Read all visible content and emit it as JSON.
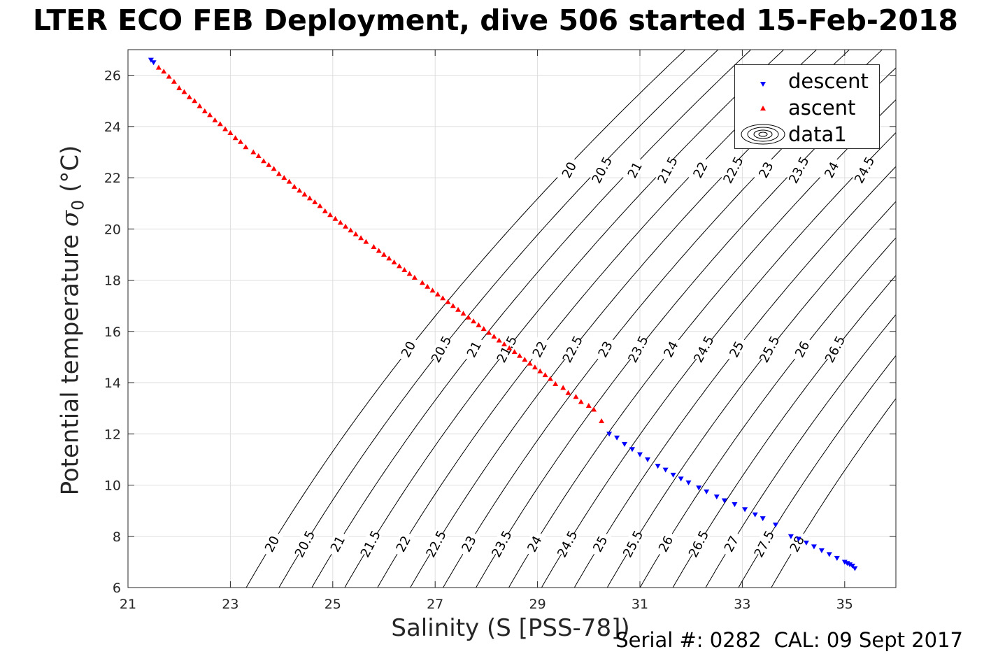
{
  "title": "LTER ECO FEB Deployment, dive 506 started 15-Feb-2018",
  "footer": {
    "serial": "Serial #: 0282",
    "cal": "CAL: 09 Sept 2017"
  },
  "colors": {
    "descent": "#0000ff",
    "ascent": "#ff0000",
    "contour": "#000000",
    "grid": "#dedede",
    "axis": "#262626"
  },
  "chart_data": {
    "type": "scatter",
    "title": "LTER ECO FEB Deployment, dive 506 started 15-Feb-2018",
    "xlabel": "Salinity (S [PSS-78])",
    "ylabel_text": "Potential temperature ",
    "ylabel_sigma": "σ",
    "ylabel_sub": "0",
    "ylabel_unit": " (°C)",
    "xlim": [
      21,
      36
    ],
    "ylim": [
      6,
      27
    ],
    "xticks": [
      21,
      23,
      25,
      27,
      29,
      31,
      33,
      35
    ],
    "yticks": [
      6,
      8,
      10,
      12,
      14,
      16,
      18,
      20,
      22,
      24,
      26
    ],
    "grid": true,
    "legend_position": "top-right",
    "legend": [
      "descent",
      "ascent",
      "data1"
    ],
    "contour_levels": [
      "20",
      "20.5",
      "21",
      "21.5",
      "22",
      "22.5",
      "23",
      "23.5",
      "24",
      "24.5",
      "25",
      "25.5",
      "26",
      "26.5",
      "27",
      "27.5",
      "28"
    ],
    "series": [
      {
        "name": "descent",
        "marker": "triangle-down",
        "points": [
          [
            21.45,
            26.6
          ],
          [
            21.5,
            26.5
          ],
          [
            30.4,
            12.0
          ],
          [
            30.55,
            11.85
          ],
          [
            30.7,
            11.6
          ],
          [
            30.85,
            11.4
          ],
          [
            31.0,
            11.2
          ],
          [
            31.15,
            11.0
          ],
          [
            31.35,
            10.75
          ],
          [
            31.5,
            10.6
          ],
          [
            31.65,
            10.4
          ],
          [
            31.8,
            10.25
          ],
          [
            31.95,
            10.1
          ],
          [
            32.15,
            9.9
          ],
          [
            32.3,
            9.75
          ],
          [
            32.5,
            9.55
          ],
          [
            32.65,
            9.4
          ],
          [
            32.85,
            9.25
          ],
          [
            33.05,
            9.05
          ],
          [
            33.25,
            8.85
          ],
          [
            33.4,
            8.7
          ],
          [
            33.65,
            8.45
          ],
          [
            33.95,
            8.0
          ],
          [
            34.1,
            7.9
          ],
          [
            34.25,
            7.75
          ],
          [
            34.4,
            7.6
          ],
          [
            34.55,
            7.45
          ],
          [
            34.7,
            7.3
          ],
          [
            34.85,
            7.15
          ],
          [
            35.0,
            7.0
          ],
          [
            35.05,
            6.95
          ],
          [
            35.1,
            6.9
          ],
          [
            35.15,
            6.85
          ],
          [
            35.2,
            6.75
          ]
        ]
      },
      {
        "name": "ascent",
        "marker": "triangle-up",
        "points": [
          [
            21.6,
            26.3
          ],
          [
            21.7,
            26.15
          ],
          [
            21.8,
            25.95
          ],
          [
            21.9,
            25.75
          ],
          [
            22.0,
            25.5
          ],
          [
            22.1,
            25.35
          ],
          [
            22.2,
            25.15
          ],
          [
            22.3,
            25.0
          ],
          [
            22.4,
            24.8
          ],
          [
            22.5,
            24.6
          ],
          [
            22.6,
            24.45
          ],
          [
            22.7,
            24.25
          ],
          [
            22.8,
            24.1
          ],
          [
            22.9,
            23.9
          ],
          [
            23.0,
            23.75
          ],
          [
            23.1,
            23.55
          ],
          [
            23.2,
            23.4
          ],
          [
            23.3,
            23.2
          ],
          [
            23.45,
            23.0
          ],
          [
            23.55,
            22.85
          ],
          [
            23.65,
            22.65
          ],
          [
            23.75,
            22.5
          ],
          [
            23.85,
            22.35
          ],
          [
            23.95,
            22.15
          ],
          [
            24.05,
            22.0
          ],
          [
            24.15,
            21.85
          ],
          [
            24.25,
            21.65
          ],
          [
            24.35,
            21.5
          ],
          [
            24.45,
            21.35
          ],
          [
            24.55,
            21.2
          ],
          [
            24.65,
            21.05
          ],
          [
            24.75,
            20.9
          ],
          [
            24.85,
            20.7
          ],
          [
            24.95,
            20.55
          ],
          [
            25.05,
            20.4
          ],
          [
            25.15,
            20.25
          ],
          [
            25.25,
            20.1
          ],
          [
            25.35,
            19.95
          ],
          [
            25.45,
            19.8
          ],
          [
            25.55,
            19.65
          ],
          [
            25.65,
            19.5
          ],
          [
            25.8,
            19.3
          ],
          [
            25.9,
            19.15
          ],
          [
            26.0,
            19.0
          ],
          [
            26.1,
            18.85
          ],
          [
            26.2,
            18.7
          ],
          [
            26.3,
            18.55
          ],
          [
            26.4,
            18.4
          ],
          [
            26.5,
            18.25
          ],
          [
            26.6,
            18.1
          ],
          [
            26.75,
            17.9
          ],
          [
            26.85,
            17.75
          ],
          [
            26.95,
            17.6
          ],
          [
            27.05,
            17.45
          ],
          [
            27.15,
            17.3
          ],
          [
            27.25,
            17.15
          ],
          [
            27.35,
            17.0
          ],
          [
            27.45,
            16.85
          ],
          [
            27.55,
            16.7
          ],
          [
            27.65,
            16.55
          ],
          [
            27.75,
            16.4
          ],
          [
            27.85,
            16.25
          ],
          [
            27.95,
            16.1
          ],
          [
            28.05,
            15.95
          ],
          [
            28.15,
            15.8
          ],
          [
            28.25,
            15.65
          ],
          [
            28.35,
            15.5
          ],
          [
            28.45,
            15.35
          ],
          [
            28.55,
            15.2
          ],
          [
            28.65,
            15.05
          ],
          [
            28.75,
            14.9
          ],
          [
            28.85,
            14.75
          ],
          [
            28.95,
            14.6
          ],
          [
            29.05,
            14.45
          ],
          [
            29.15,
            14.3
          ],
          [
            29.25,
            14.15
          ],
          [
            29.35,
            13.95
          ],
          [
            29.5,
            13.8
          ],
          [
            29.6,
            13.6
          ],
          [
            29.75,
            13.45
          ],
          [
            29.85,
            13.25
          ],
          [
            30.0,
            13.1
          ],
          [
            30.1,
            12.95
          ],
          [
            30.25,
            12.5
          ]
        ]
      }
    ]
  }
}
